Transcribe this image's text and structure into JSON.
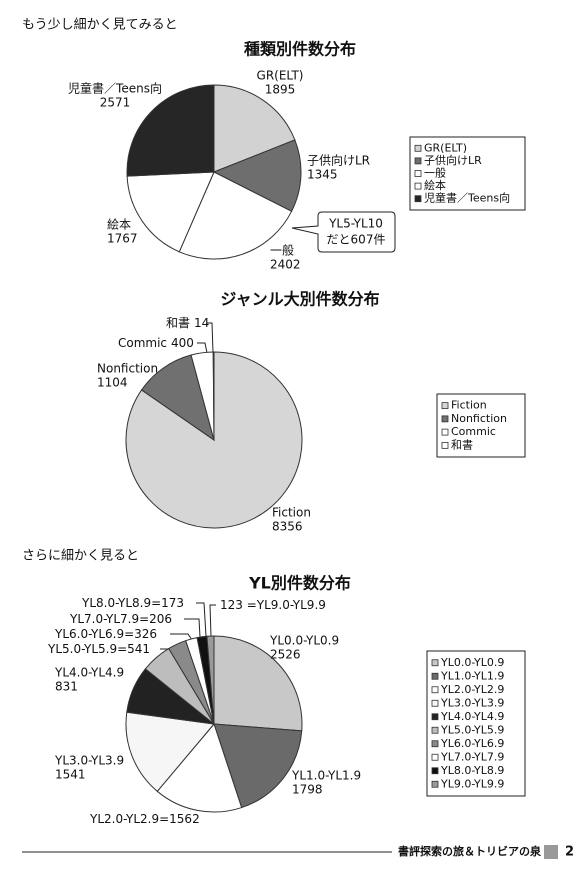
{
  "headings": [
    "もう少し細かく見てみると",
    "さらに細かく見ると"
  ],
  "footer": {
    "title": "書評探索の旅＆トリビアの泉",
    "page": "2"
  },
  "chart_data": [
    {
      "type": "pie",
      "title": "種類別件数分布",
      "categories": [
        "GR(ELT)",
        "子供向けLR",
        "一般",
        "絵本",
        "児童書／Teens向"
      ],
      "values": [
        1895,
        1345,
        2402,
        1767,
        2571
      ],
      "colors": [
        "#d2d2d2",
        "#6e6e6e",
        "#ffffff",
        "#ffffff",
        "#262626"
      ],
      "annotation": [
        "YL5-YL10",
        "だと607件"
      ]
    },
    {
      "type": "pie",
      "title": "ジャンル大別件数分布",
      "categories": [
        "Fiction",
        "Nonfiction",
        "Commic",
        "和書"
      ],
      "values": [
        8356,
        1104,
        400,
        14
      ],
      "colors": [
        "#d6d6d6",
        "#707070",
        "#ffffff",
        "#ffffff"
      ]
    },
    {
      "type": "pie",
      "title": "YL別件数分布",
      "categories": [
        "YL0.0-YL0.9",
        "YL1.0-YL1.9",
        "YL2.0-YL2.9",
        "YL3.0-YL3.9",
        "YL4.0-YL4.9",
        "YL5.0-YL5.9",
        "YL6.0-YL6.9",
        "YL7.0-YL7.9",
        "YL8.0-YL8.9",
        "YL9.0-YL9.9"
      ],
      "values": [
        2526,
        1798,
        1562,
        1541,
        831,
        541,
        326,
        206,
        173,
        123
      ],
      "value_labels": [
        "2526",
        "1798",
        "=1562",
        "1541",
        "831",
        "=541",
        "=326",
        "=206",
        "=173",
        "123 ="
      ],
      "colors": [
        "#c8c8c8",
        "#6a6a6a",
        "#ffffff",
        "#f6f6f6",
        "#222222",
        "#bdbdbd",
        "#8a8a8a",
        "#ffffff",
        "#111111",
        "#9a9a9a"
      ]
    }
  ]
}
